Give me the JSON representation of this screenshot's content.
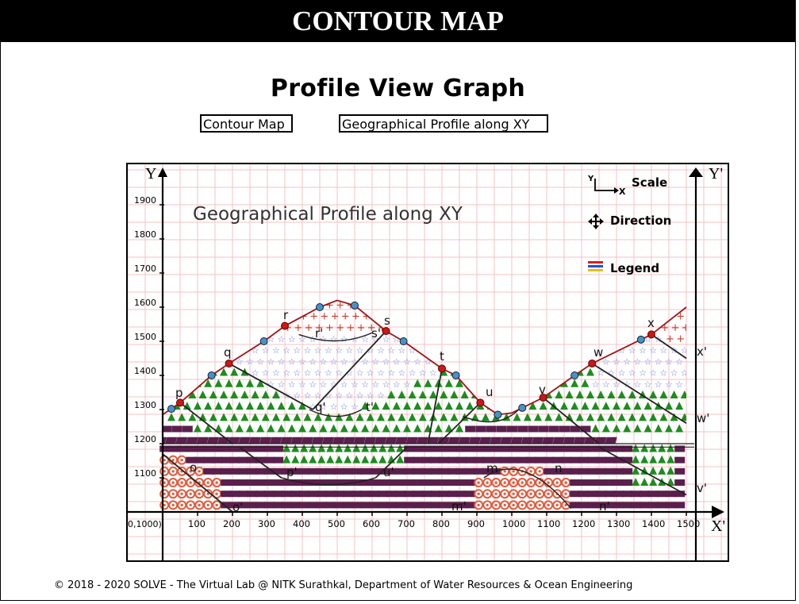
{
  "header": {
    "title": "CONTOUR MAP"
  },
  "page": {
    "heading": "Profile View Graph"
  },
  "buttons": {
    "contour_map": "Contour Map",
    "geo_profile": "Geographical Profile along XY"
  },
  "graph": {
    "title": "Geographical Profile along XY",
    "y_axis_label": "Y",
    "y_prime_label": "Y'",
    "x_prime_label": "X'",
    "origin_label": "0,1000)",
    "x_ticks": [
      "100",
      "200",
      "300",
      "400",
      "500",
      "600",
      "700",
      "800",
      "900",
      "1000",
      "1100",
      "1200",
      "1300",
      "1400",
      "1500"
    ],
    "y_ticks": [
      "1100",
      "1200",
      "1300",
      "1400",
      "1500",
      "1600",
      "1700",
      "1800",
      "1900"
    ],
    "legend": {
      "scale_label": "Scale",
      "scale_y": "Y",
      "scale_x": "X",
      "direction_label": "Direction",
      "legend_label": "Legend"
    },
    "point_labels": {
      "p": "p",
      "q": "q",
      "r": "r",
      "s": "s",
      "t": "t",
      "u": "u",
      "v": "v",
      "w": "w",
      "x": "x",
      "r_prime": "r'",
      "s_prime": "s'",
      "q_prime": "q'",
      "t_prime": "t'",
      "p_prime": "p'",
      "u_prime": "u'",
      "m": "m",
      "n": "n",
      "m_prime": "m'",
      "n_prime": "n'",
      "o": "o",
      "o_prime": "o'",
      "x_prime": "x'",
      "w_prime": "w'",
      "v_prime": "v'"
    },
    "colors": {
      "grid": "#f4c2c6",
      "profile": "#a01414",
      "red_point": "#c81818",
      "blue_point": "#4a90c8",
      "triangle": "#1e8c1e",
      "brick": "#5a1f4c",
      "star": "#6a7ad8",
      "plus": "#c83c28",
      "circle": "#e05a3c"
    }
  },
  "footer": {
    "text": "© 2018 - 2020 SOLVE - The Virtual Lab @ NITK Surathkal, Department of Water Resources & Ocean Engineering"
  }
}
